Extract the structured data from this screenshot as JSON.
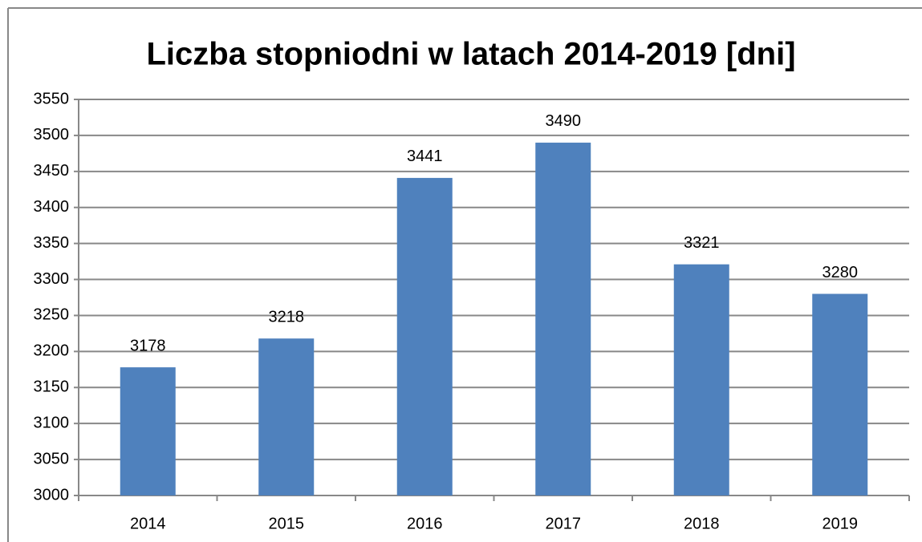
{
  "chart_data": {
    "type": "bar",
    "title": "Liczba stopniodni w latach 2014-2019 [dni]",
    "categories": [
      "2014",
      "2015",
      "2016",
      "2017",
      "2018",
      "2019"
    ],
    "values": [
      3178,
      3218,
      3441,
      3490,
      3321,
      3280
    ],
    "color": "#4f81bd",
    "ylim": [
      3000,
      3550
    ],
    "yticks": [
      3000,
      3050,
      3100,
      3150,
      3200,
      3250,
      3300,
      3350,
      3400,
      3450,
      3500,
      3550
    ],
    "grid": true
  }
}
